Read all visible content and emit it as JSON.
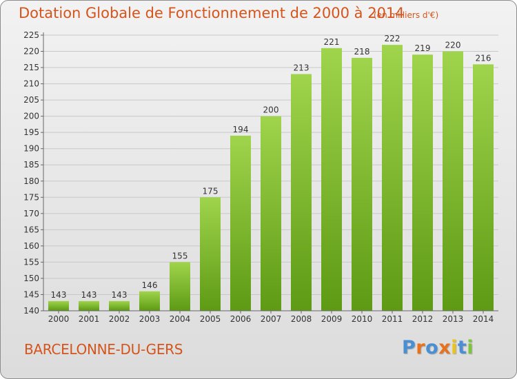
{
  "header": {
    "title": "Dotation Globale de Fonctionnement de 2000 à 2014",
    "unit": "(en milliers d'€)"
  },
  "footer": {
    "place": "BARCELONNE-DU-GERS",
    "logo": [
      "P",
      "r",
      "o",
      "x",
      "i",
      "t",
      "i"
    ]
  },
  "colors": {
    "bar_light": "#9fd44c",
    "bar_dark": "#5e9a14",
    "title": "#d4541c",
    "logo": [
      "#4a8fd4",
      "#e8721c",
      "#4a8fd4",
      "#e8721c",
      "#e8c41c",
      "#4a8fd4",
      "#7cc43c"
    ]
  },
  "chart_data": {
    "type": "bar",
    "title": "Dotation Globale de Fonctionnement de 2000 à 2014",
    "categories": [
      "2000",
      "2001",
      "2002",
      "2003",
      "2004",
      "2005",
      "2006",
      "2007",
      "2008",
      "2009",
      "2010",
      "2011",
      "2012",
      "2013",
      "2014"
    ],
    "values": [
      143,
      143,
      143,
      146,
      155,
      175,
      194,
      200,
      213,
      221,
      218,
      222,
      219,
      220,
      216
    ],
    "ylim": [
      140,
      225
    ],
    "yticks": [
      140,
      145,
      150,
      155,
      160,
      165,
      170,
      175,
      180,
      185,
      190,
      195,
      200,
      205,
      210,
      215,
      220,
      225
    ],
    "grid": true,
    "xlabel": "",
    "ylabel": ""
  }
}
